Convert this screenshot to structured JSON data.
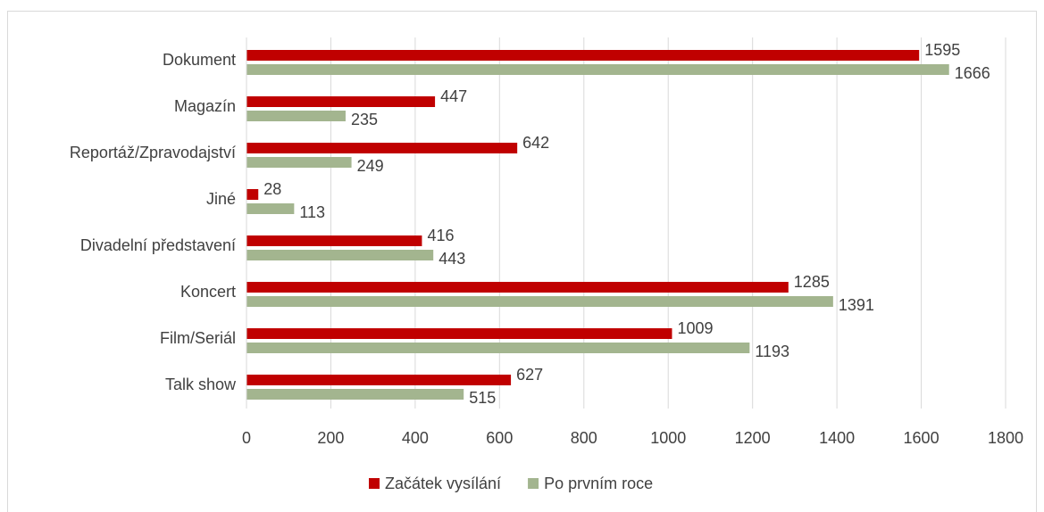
{
  "chart_data": {
    "type": "hbar",
    "categories": [
      "Dokument",
      "Magazín",
      "Reportáž/Zpravodajství",
      "Jiné",
      "Divadelní představení",
      "Koncert",
      "Film/Seriál",
      "Talk show"
    ],
    "series": [
      {
        "name": "Začátek vysílání",
        "color": "#c00000",
        "values": [
          1595,
          447,
          642,
          28,
          416,
          1285,
          1009,
          627
        ]
      },
      {
        "name": "Po prvním roce",
        "color": "#a3b58f",
        "values": [
          1666,
          235,
          249,
          113,
          443,
          1391,
          1193,
          515
        ]
      }
    ],
    "xlim": [
      0,
      1800
    ],
    "xticks": [
      0,
      200,
      400,
      600,
      800,
      1000,
      1200,
      1400,
      1600,
      1800
    ],
    "grid": true,
    "legend": "bottom"
  }
}
